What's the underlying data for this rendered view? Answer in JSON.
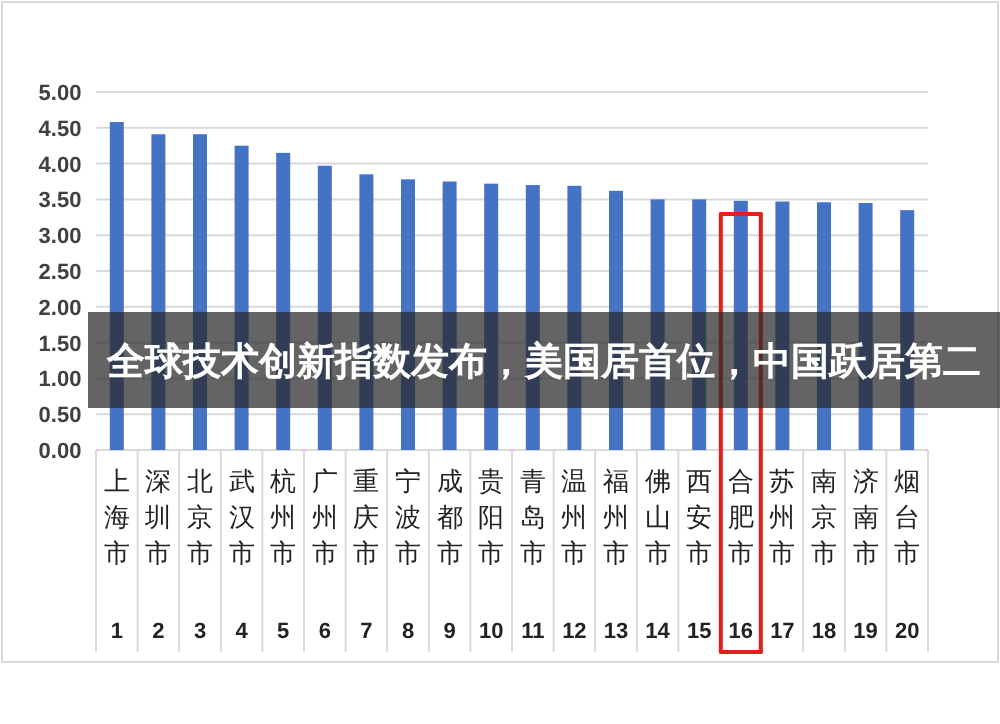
{
  "chart_data": {
    "type": "bar",
    "title": "全球技术创新指数发布，美国居首位，中国跃居第二",
    "categories": [
      "上海市",
      "深圳市",
      "北京市",
      "武汉市",
      "杭州市",
      "广州市",
      "重庆市",
      "宁波市",
      "成都市",
      "贵阳市",
      "青岛市",
      "温州市",
      "福州市",
      "佛山市",
      "西安市",
      "合肥市",
      "苏州市",
      "南京市",
      "济南市",
      "烟台市"
    ],
    "values": [
      4.58,
      4.41,
      4.41,
      4.25,
      4.15,
      3.97,
      3.85,
      3.78,
      3.75,
      3.72,
      3.7,
      3.69,
      3.62,
      3.5,
      3.5,
      3.48,
      3.47,
      3.46,
      3.45,
      3.35
    ],
    "color": "#4472c4",
    "annotations": [
      "1",
      "2",
      "3",
      "4",
      "5",
      "6",
      "7",
      "8",
      "9",
      "10",
      "11",
      "12",
      "13",
      "14",
      "15",
      "16",
      "17",
      "18",
      "19",
      "20"
    ],
    "ylim": [
      0,
      5
    ],
    "yticks": [
      {
        "value": 0,
        "label": "0.00"
      },
      {
        "value": 0.5,
        "label": "0.50"
      },
      {
        "value": 1,
        "label": "1.00"
      },
      {
        "value": 1.5,
        "label": "1.50"
      },
      {
        "value": 2,
        "label": "2.00"
      },
      {
        "value": 2.5,
        "label": "2.50"
      },
      {
        "value": 3,
        "label": "3.00"
      },
      {
        "value": 3.5,
        "label": "3.50"
      },
      {
        "value": 4,
        "label": "4.00"
      },
      {
        "value": 4.5,
        "label": "4.50"
      },
      {
        "value": 5,
        "label": "5.00"
      }
    ],
    "grid": "y"
  }
}
